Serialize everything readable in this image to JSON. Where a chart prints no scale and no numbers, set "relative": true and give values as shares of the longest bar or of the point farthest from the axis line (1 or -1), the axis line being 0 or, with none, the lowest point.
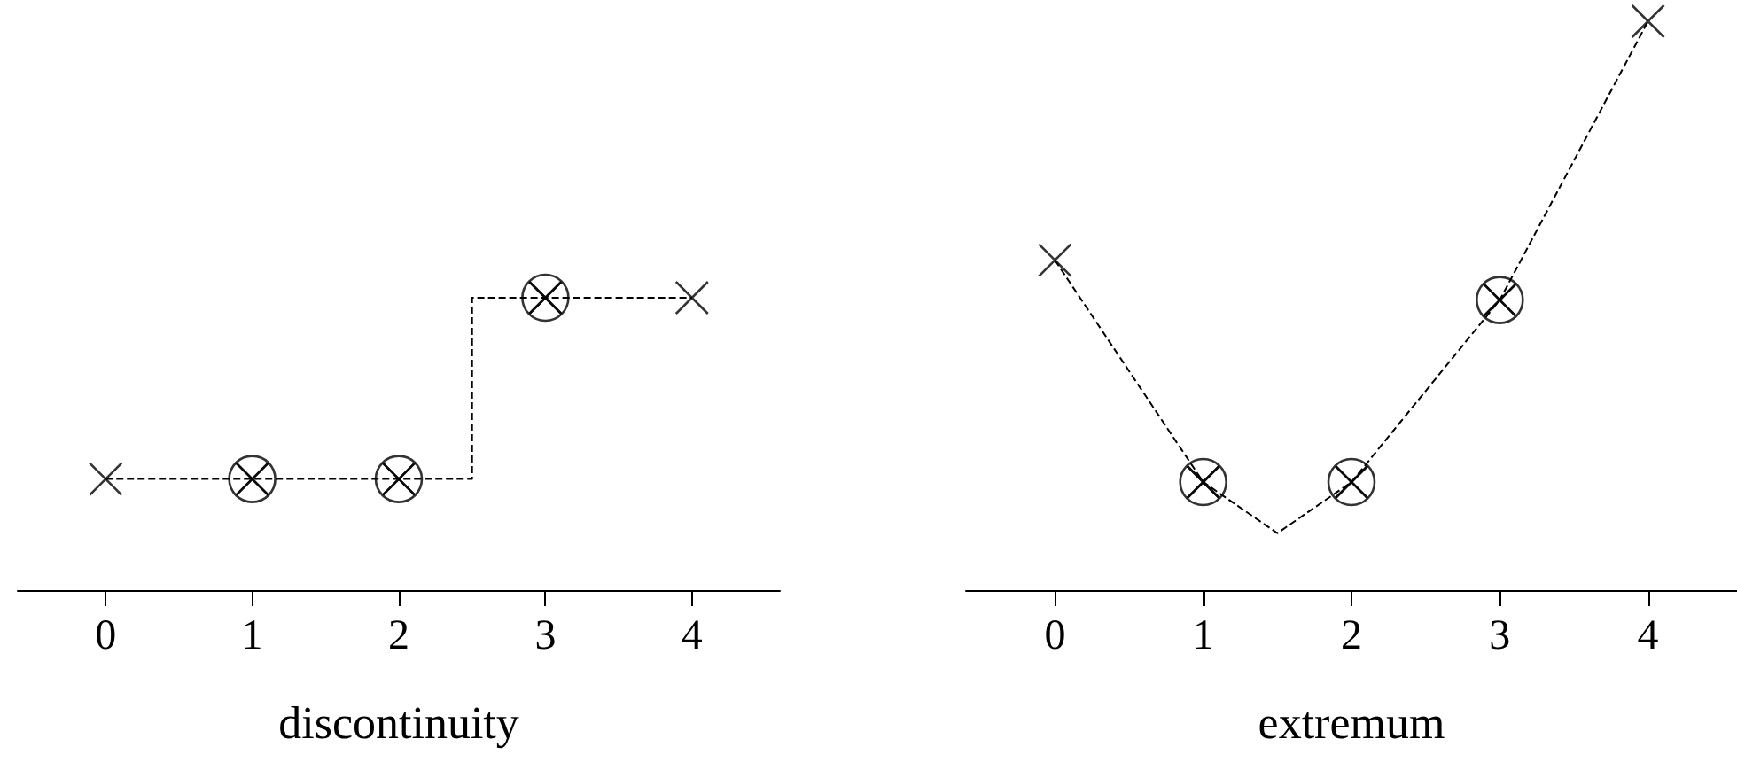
{
  "chart_data": [
    {
      "type": "line",
      "xlabel": "discontinuity",
      "relative": true,
      "xlim": [
        -0.6,
        4.6
      ],
      "xticks": [
        0,
        1,
        2,
        3,
        4
      ],
      "tick_labels": "x",
      "series": [
        {
          "type": "step",
          "color": "#000000",
          "x": [
            0,
            1,
            2,
            3,
            4
          ],
          "values": [
            0.38,
            0.38,
            0.38,
            1,
            1
          ],
          "line_style": "dashed"
        },
        {
          "type": "scatter",
          "color": "#000000",
          "x": [
            0,
            1,
            2,
            3,
            4
          ],
          "values": [
            0.38,
            0.38,
            0.38,
            1,
            1
          ],
          "marker": "cross"
        },
        {
          "type": "scatter",
          "color": "#000000",
          "x": [
            1,
            2,
            3
          ],
          "values": [
            0.38,
            0.38,
            1
          ],
          "marker": "circle"
        }
      ]
    },
    {
      "type": "line",
      "xlabel": "extremum",
      "relative": true,
      "xlim": [
        -0.6,
        4.6
      ],
      "xticks": [
        0,
        1,
        2,
        3,
        4
      ],
      "tick_labels": "x",
      "series": [
        {
          "type": "line",
          "color": "#000000",
          "x": [
            0,
            1,
            1.5,
            2,
            3,
            4
          ],
          "values": [
            0.58,
            0.19,
            0.1,
            0.19,
            0.51,
            1
          ],
          "line_style": "dashed"
        },
        {
          "type": "scatter",
          "color": "#000000",
          "x": [
            0,
            1,
            2,
            3,
            4
          ],
          "values": [
            0.58,
            0.19,
            0.19,
            0.51,
            1
          ],
          "marker": "cross"
        },
        {
          "type": "scatter",
          "color": "#000000",
          "x": [
            1,
            2,
            3
          ],
          "values": [
            0.19,
            0.19,
            0.51
          ],
          "marker": "circle"
        }
      ]
    }
  ]
}
